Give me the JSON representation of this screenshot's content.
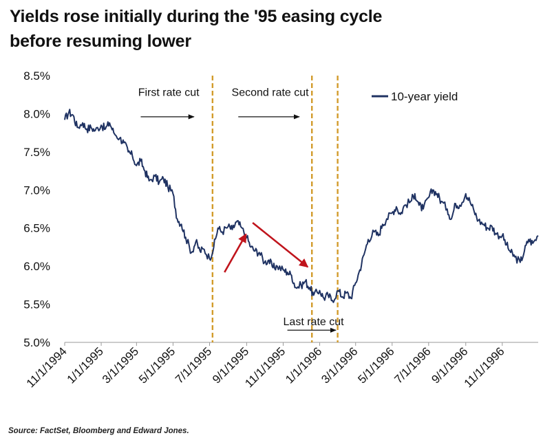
{
  "title_line1": "Yields rose initially during the '95 easing cycle",
  "title_line2": "before resuming lower",
  "source": "Source: FactSet, Bloomberg and Edward Jones.",
  "colors": {
    "line": "#1f3262",
    "cut_line": "#d29b2a",
    "arrow_red": "#c0141c",
    "arrow_black": "#111111",
    "axis": "#9a9a9a"
  },
  "chart_data": {
    "type": "line",
    "title": "Yields rose initially during the '95 easing cycle before resuming lower",
    "ylim": [
      5.0,
      8.5
    ],
    "yticks": [
      5.0,
      5.5,
      6.0,
      6.5,
      7.0,
      7.5,
      8.0,
      8.5
    ],
    "ytick_labels": [
      "5.0%",
      "5.5%",
      "6.0%",
      "6.5%",
      "7.0%",
      "7.5%",
      "8.0%",
      "8.5%"
    ],
    "xlim": [
      "1994-11-01",
      "1996-12-31"
    ],
    "xticks": [
      "1994-11-01",
      "1995-01-01",
      "1995-03-01",
      "1995-05-01",
      "1995-07-01",
      "1995-09-01",
      "1995-11-01",
      "1996-01-01",
      "1996-03-01",
      "1996-05-01",
      "1996-07-01",
      "1996-09-01",
      "1996-11-01"
    ],
    "xtick_labels": [
      "11/1/1994",
      "1/1/1995",
      "3/1/1995",
      "5/1/1995",
      "7/1/1995",
      "9/1/1995",
      "11/1/1995",
      "1/1/1996",
      "3/1/1996",
      "5/1/1996",
      "7/1/1996",
      "9/1/1996",
      "11/1/1996"
    ],
    "grid": false,
    "legend_position": "top-right",
    "series": [
      {
        "name": "10-year yield",
        "x": [
          "1994-11-01",
          "1994-11-08",
          "1994-11-15",
          "1994-11-22",
          "1994-12-01",
          "1994-12-08",
          "1994-12-15",
          "1994-12-22",
          "1995-01-01",
          "1995-01-08",
          "1995-01-15",
          "1995-01-22",
          "1995-02-01",
          "1995-02-08",
          "1995-02-15",
          "1995-02-22",
          "1995-03-01",
          "1995-03-08",
          "1995-03-15",
          "1995-03-22",
          "1995-04-01",
          "1995-04-08",
          "1995-04-15",
          "1995-04-22",
          "1995-05-01",
          "1995-05-08",
          "1995-05-15",
          "1995-05-22",
          "1995-06-01",
          "1995-06-08",
          "1995-06-15",
          "1995-06-22",
          "1995-07-01",
          "1995-07-08",
          "1995-07-15",
          "1995-07-22",
          "1995-08-01",
          "1995-08-08",
          "1995-08-15",
          "1995-08-22",
          "1995-09-01",
          "1995-09-08",
          "1995-09-15",
          "1995-09-22",
          "1995-10-01",
          "1995-10-08",
          "1995-10-15",
          "1995-10-22",
          "1995-11-01",
          "1995-11-08",
          "1995-11-15",
          "1995-11-22",
          "1995-12-01",
          "1995-12-08",
          "1995-12-15",
          "1995-12-22",
          "1996-01-01",
          "1996-01-08",
          "1996-01-15",
          "1996-01-22",
          "1996-02-01",
          "1996-02-08",
          "1996-02-15",
          "1996-02-22",
          "1996-03-01",
          "1996-03-08",
          "1996-03-15",
          "1996-03-22",
          "1996-04-01",
          "1996-04-08",
          "1996-04-15",
          "1996-04-22",
          "1996-05-01",
          "1996-05-08",
          "1996-05-15",
          "1996-05-22",
          "1996-06-01",
          "1996-06-08",
          "1996-06-15",
          "1996-06-22",
          "1996-07-01",
          "1996-07-08",
          "1996-07-15",
          "1996-07-22",
          "1996-08-01",
          "1996-08-08",
          "1996-08-15",
          "1996-08-22",
          "1996-09-01",
          "1996-09-08",
          "1996-09-15",
          "1996-09-22",
          "1996-10-01",
          "1996-10-08",
          "1996-10-15",
          "1996-10-22",
          "1996-11-01",
          "1996-11-08",
          "1996-11-15",
          "1996-11-22",
          "1996-12-01",
          "1996-12-08",
          "1996-12-15",
          "1996-12-22",
          "1996-12-31"
        ],
        "values": [
          7.92,
          8.02,
          7.98,
          7.82,
          7.88,
          7.8,
          7.82,
          7.78,
          7.85,
          7.8,
          7.88,
          7.75,
          7.68,
          7.62,
          7.5,
          7.45,
          7.32,
          7.38,
          7.25,
          7.12,
          7.18,
          7.1,
          7.15,
          7.05,
          6.95,
          6.62,
          6.55,
          6.38,
          6.18,
          6.32,
          6.2,
          6.22,
          6.1,
          6.25,
          6.5,
          6.45,
          6.52,
          6.48,
          6.58,
          6.52,
          6.38,
          6.25,
          6.2,
          6.18,
          6.05,
          6.08,
          5.98,
          6.0,
          5.95,
          5.92,
          5.88,
          5.72,
          5.75,
          5.8,
          5.72,
          5.62,
          5.68,
          5.58,
          5.62,
          5.55,
          5.68,
          5.6,
          5.65,
          5.58,
          5.78,
          5.95,
          6.15,
          6.35,
          6.45,
          6.4,
          6.55,
          6.62,
          6.7,
          6.78,
          6.68,
          6.8,
          6.85,
          6.95,
          6.8,
          6.75,
          6.9,
          7.0,
          6.95,
          6.85,
          6.75,
          6.62,
          6.82,
          6.8,
          6.95,
          6.85,
          6.72,
          6.6,
          6.55,
          6.5,
          6.52,
          6.42,
          6.4,
          6.28,
          6.18,
          6.12,
          6.05,
          6.2,
          6.35,
          6.3,
          6.4
        ]
      }
    ],
    "rate_cuts": [
      "1995-07-06",
      "1995-12-19",
      "1996-01-31"
    ],
    "annotations": [
      {
        "text": "First rate cut",
        "arrow_from": "1995-03-08",
        "arrow_to": "1995-06-05",
        "y_text": 8.29,
        "y_arrow": 7.96
      },
      {
        "text": "Second rate cut",
        "arrow_from": "1995-08-18",
        "arrow_to": "1995-11-28",
        "y_text": 8.29,
        "y_arrow": 7.96
      },
      {
        "text": "Last rate cut",
        "arrow_from": "1995-11-08",
        "arrow_to": "1996-01-28",
        "y_text": 5.28,
        "y_arrow": 5.16
      }
    ],
    "red_arrows": [
      {
        "from": [
          "1995-07-26",
          5.92
        ],
        "to": [
          "1995-08-31",
          6.42
        ]
      },
      {
        "from": [
          "1995-09-11",
          6.57
        ],
        "to": [
          "1995-12-12",
          5.99
        ]
      }
    ]
  }
}
